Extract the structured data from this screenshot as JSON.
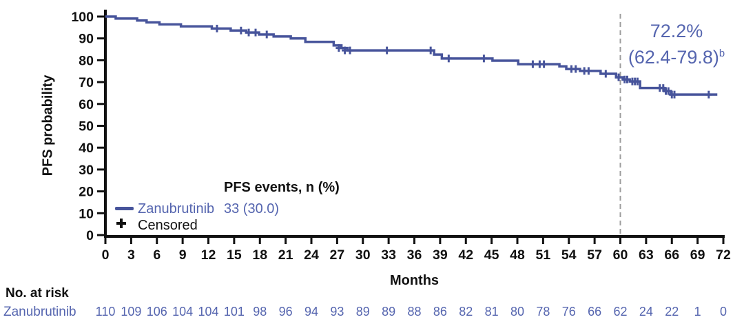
{
  "chart_data": {
    "type": "line",
    "subtype": "kaplan_meier_step",
    "title": "",
    "xlabel": "Months",
    "ylabel": "PFS probability",
    "xlim": [
      0,
      72
    ],
    "xticks": [
      0,
      3,
      6,
      9,
      12,
      15,
      18,
      21,
      24,
      27,
      30,
      33,
      36,
      39,
      42,
      45,
      48,
      51,
      54,
      57,
      60,
      63,
      66,
      69,
      72
    ],
    "ylim": [
      0,
      100
    ],
    "yticks": [
      0,
      10,
      20,
      30,
      40,
      50,
      60,
      70,
      80,
      90,
      100
    ],
    "grid": false,
    "legend_position": "lower-left-inside",
    "series": [
      {
        "name": "Zanubrutinib",
        "color": "#47549b",
        "steps": [
          [
            0,
            100
          ],
          [
            1.2,
            99.1
          ],
          [
            3.7,
            98.2
          ],
          [
            4.8,
            97.3
          ],
          [
            6.3,
            96.4
          ],
          [
            8.8,
            95.5
          ],
          [
            12.4,
            94.5
          ],
          [
            14.6,
            93.6
          ],
          [
            16.4,
            92.7
          ],
          [
            17.9,
            91.8
          ],
          [
            19.6,
            90.9
          ],
          [
            21.6,
            90.0
          ],
          [
            23.3,
            88.4
          ],
          [
            26.6,
            86.8
          ],
          [
            27.5,
            85.6
          ],
          [
            28.2,
            84.5
          ],
          [
            38.3,
            82.6
          ],
          [
            39.2,
            80.8
          ],
          [
            45.1,
            79.8
          ],
          [
            48.1,
            78.2
          ],
          [
            52.9,
            77.2
          ],
          [
            53.7,
            76.0
          ],
          [
            55.3,
            75.1
          ],
          [
            57.7,
            73.8
          ],
          [
            59.5,
            72.2
          ],
          [
            60.3,
            71.2
          ],
          [
            61.1,
            70.3
          ],
          [
            62.3,
            67.3
          ],
          [
            65.1,
            65.9
          ],
          [
            65.9,
            64.3
          ]
        ],
        "end_month": 71.3,
        "censor_marks": [
          [
            13.0,
            94.5
          ],
          [
            15.8,
            93.6
          ],
          [
            16.7,
            92.7
          ],
          [
            17.5,
            92.7
          ],
          [
            18.8,
            91.8
          ],
          [
            27.2,
            85.6
          ],
          [
            27.9,
            84.5
          ],
          [
            28.5,
            84.5
          ],
          [
            32.8,
            84.5
          ],
          [
            37.9,
            84.5
          ],
          [
            40.0,
            80.8
          ],
          [
            44.1,
            80.8
          ],
          [
            49.8,
            78.2
          ],
          [
            50.6,
            78.2
          ],
          [
            51.1,
            78.2
          ],
          [
            54.3,
            76.0
          ],
          [
            54.8,
            76.0
          ],
          [
            55.8,
            75.1
          ],
          [
            56.3,
            75.1
          ],
          [
            58.3,
            73.8
          ],
          [
            59.8,
            72.2
          ],
          [
            60.5,
            71.2
          ],
          [
            60.8,
            71.2
          ],
          [
            61.4,
            70.3
          ],
          [
            61.7,
            70.3
          ],
          [
            62.0,
            70.3
          ],
          [
            64.6,
            67.3
          ],
          [
            65.0,
            67.3
          ],
          [
            65.3,
            65.9
          ],
          [
            65.6,
            65.9
          ],
          [
            66.0,
            64.3
          ],
          [
            66.3,
            64.3
          ],
          [
            70.3,
            64.3
          ]
        ]
      }
    ],
    "reference_line": {
      "orientation": "vertical",
      "x": 60,
      "style": "dashed",
      "color": "#9c9c9c"
    },
    "annotation": {
      "line1": "72.2%",
      "line2": "(62.4-79.8)",
      "superscript": "b",
      "color": "#5565af"
    },
    "legend": {
      "header": "PFS events, n (%)",
      "items": [
        {
          "marker": "line",
          "label": "Zanubrutinib",
          "value": "33 (30.0)"
        },
        {
          "marker": "plus",
          "label": "Censored",
          "value": ""
        }
      ]
    },
    "at_risk": {
      "header": "No. at risk",
      "rows": [
        {
          "label": "Zanubrutinib",
          "values": [
            "110",
            "109",
            "106",
            "104",
            "104",
            "101",
            "98",
            "96",
            "94",
            "93",
            "89",
            "89",
            "88",
            "86",
            "82",
            "81",
            "80",
            "78",
            "76",
            "66",
            "62",
            "24",
            "22",
            "1",
            "0"
          ]
        }
      ]
    }
  },
  "colors": {
    "curve": "#47549b",
    "blue_text": "#5565af",
    "axis": "#111111",
    "dashed": "#9c9c9c",
    "background": "#ffffff"
  }
}
